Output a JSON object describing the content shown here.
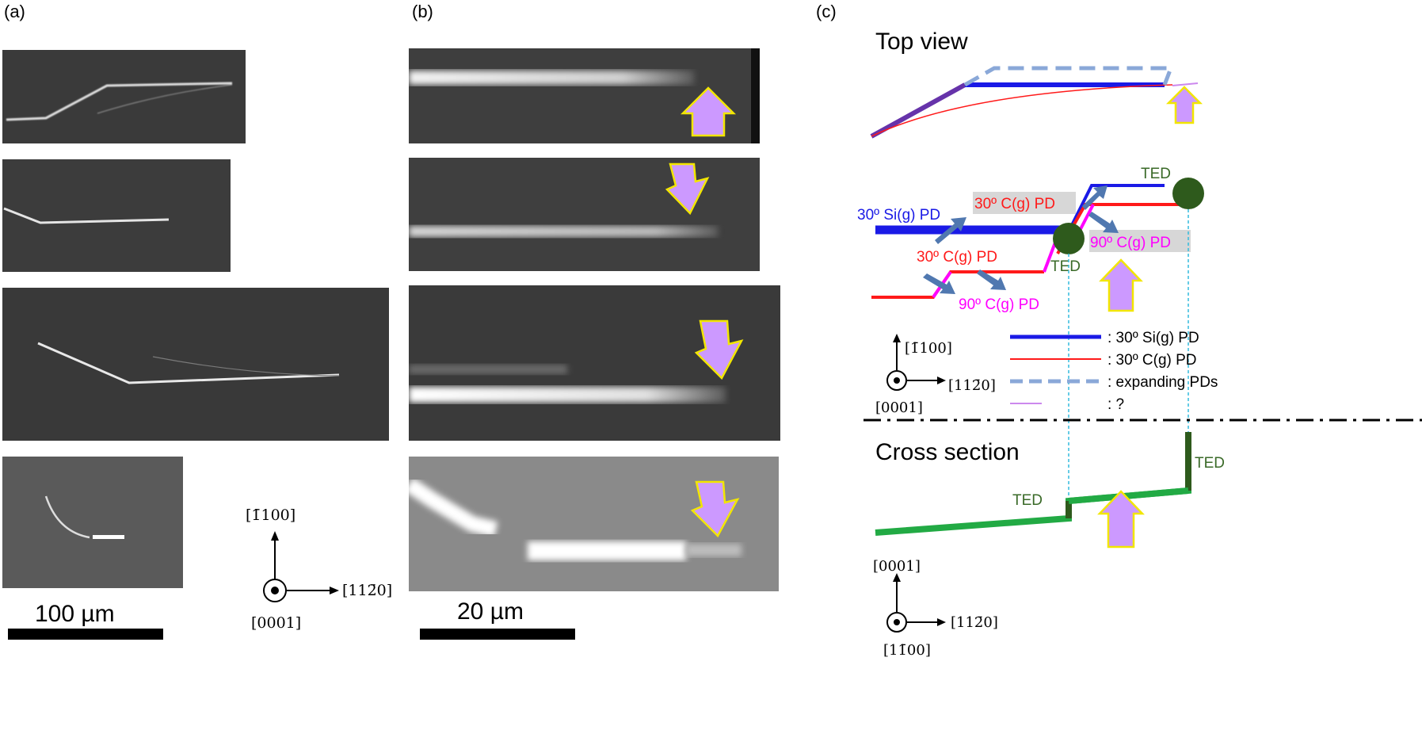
{
  "panels": {
    "a": {
      "label": "(a)",
      "scale_label": "100 µm"
    },
    "b": {
      "label": "(b)",
      "scale_label": "20 µm"
    },
    "c": {
      "label": "(c)"
    }
  },
  "axes_a": {
    "up": "[1̄100]",
    "right": "[112̄0]",
    "out": "[0001]"
  },
  "diagram": {
    "top_view_title": "Top view",
    "cross_section_title": "Cross section",
    "labels": {
      "si_pd": "30º Si(g) PD",
      "c_pd_upper": "30º C(g) PD",
      "c_pd_lower": "30º C(g) PD",
      "pd90_upper": "90º C(g) PD",
      "pd90_lower": "90º C(g) PD",
      "ted_upper": "TED",
      "ted_lower": "TED",
      "ted_cs_left": "TED",
      "ted_cs_right": "TED"
    },
    "legend": [
      {
        "text": ": 30º Si(g) PD",
        "color": "#1a1ae6",
        "style": "solid-thick"
      },
      {
        "text": ": 30º C(g) PD",
        "color": "#ff1a1a",
        "style": "solid-thin"
      },
      {
        "text": ": expanding PDs",
        "color": "#8aa8d8",
        "style": "dashed"
      },
      {
        "text": ": ?",
        "color": "#cc88ee",
        "style": "solid-thin"
      }
    ],
    "axes_top": {
      "up": "[1̄100]",
      "right": "[112̄0]",
      "out": "[0001]"
    },
    "axes_cross": {
      "up": "[0001]",
      "right": "[112̄0]",
      "out": "[11̄00]"
    }
  },
  "colors": {
    "si_pd": "#1a1ae6",
    "c_pd": "#ff1a1a",
    "expanding": "#8aa8d8",
    "unknown": "#cc88ee",
    "arrow_fill": "#cc99ff",
    "arrow_stroke": "#f2e600",
    "ted": "#2e5a1c",
    "ted_text": "#3a6a28",
    "cross_section": "#22aa44",
    "pd90": "#ff00ff",
    "guide": "#33bbdd"
  }
}
